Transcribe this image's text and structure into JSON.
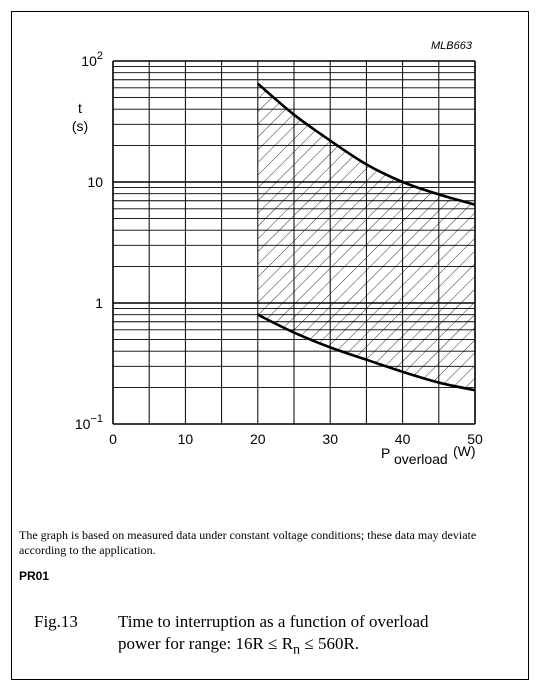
{
  "chart_data": {
    "type": "area",
    "code_label": "MLB663",
    "ylabel_top": "t",
    "ylabel_unit": "(s)",
    "xlabel_main": "P",
    "xlabel_sub": "overload",
    "xlabel_unit": "(W)",
    "xlim": [
      0,
      50
    ],
    "ylim": [
      0.1,
      100
    ],
    "yscale": "log",
    "grid": true,
    "x_ticks": [
      "0",
      "10",
      "20",
      "30",
      "40",
      "50"
    ],
    "x_tick_values": [
      0,
      10,
      20,
      30,
      40,
      50
    ],
    "y_ticks": [
      {
        "value": 0.1,
        "base": "10",
        "exp": "−1"
      },
      {
        "value": 1,
        "base": "1",
        "exp": ""
      },
      {
        "value": 10,
        "base": "10",
        "exp": ""
      },
      {
        "value": 100,
        "base": "10",
        "exp": "2"
      }
    ],
    "series": [
      {
        "x": [
          20,
          25,
          30,
          35,
          40,
          45,
          50
        ],
        "y": [
          65,
          36,
          22,
          14,
          10,
          7.9,
          6.5
        ]
      },
      {
        "x": [
          20,
          25,
          30,
          35,
          40,
          45,
          50
        ],
        "y": [
          0.8,
          0.57,
          0.43,
          0.34,
          0.27,
          0.22,
          0.19
        ]
      }
    ],
    "shaded_region": "between series, x from 20 to 50"
  },
  "note_text": "The graph is based on measured data under constant voltage conditions; these data may deviate according to the application.",
  "product_code": "PR01",
  "caption": {
    "number": "Fig.13",
    "line1": "Time to interruption as a function of overload",
    "line2_prefix": "power for range: 16R ≤ R",
    "line2_sub": "n",
    "line2_suffix": " ≤ 560R."
  }
}
